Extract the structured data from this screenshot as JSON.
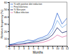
{
  "chart_data": {
    "type": "line",
    "x_label": "Months",
    "y_label": "Relative frequency (%)",
    "x": [
      0,
      1,
      2,
      3,
      4,
      5,
      6,
      7,
      8,
      9,
      10,
      11,
      12
    ],
    "xlim": [
      0,
      12
    ],
    "xticks": [
      0,
      1,
      2,
      3,
      4,
      5,
      6,
      7,
      8,
      9,
      10,
      11,
      12
    ],
    "ylim": [
      0,
      60
    ],
    "yticks": [
      0,
      10,
      20,
      30,
      40,
      50,
      60
    ],
    "legend": "upper left",
    "series": [
      {
        "name": "% with positive diet reduction",
        "color": "#3b6fd4",
        "values": [
          2,
          3,
          5,
          6,
          8,
          7,
          10,
          12,
          15,
          25,
          45,
          30,
          38
        ]
      },
      {
        "name": "Final kilo/ness",
        "color": "#7fb2ea",
        "values": [
          1,
          2,
          3,
          4,
          5,
          6,
          8,
          10,
          12,
          20,
          35,
          25,
          30
        ]
      },
      {
        "name": "% Skin pain",
        "color": "#1a2a6c",
        "values": [
          1,
          2,
          2,
          3,
          4,
          5,
          6,
          8,
          10,
          15,
          25,
          18,
          20
        ]
      },
      {
        "name": "% Aux infection",
        "color": "#e07fb0",
        "values": [
          0,
          1,
          2,
          2,
          3,
          3,
          4,
          5,
          7,
          10,
          15,
          12,
          14
        ]
      }
    ]
  }
}
